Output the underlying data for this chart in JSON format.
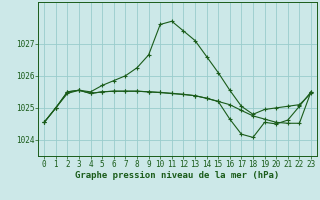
{
  "title": "Graphe pression niveau de la mer (hPa)",
  "background_color": "#cce8e8",
  "grid_color": "#99cccc",
  "line_color": "#1a5c1a",
  "marker_color": "#1a5c1a",
  "ylim": [
    1023.5,
    1028.3
  ],
  "yticks": [
    1024,
    1025,
    1026,
    1027
  ],
  "xlim": [
    -0.5,
    23.5
  ],
  "xticks": [
    0,
    1,
    2,
    3,
    4,
    5,
    6,
    7,
    8,
    9,
    10,
    11,
    12,
    13,
    14,
    15,
    16,
    17,
    18,
    19,
    20,
    21,
    22,
    23
  ],
  "series1": [
    1024.55,
    1025.0,
    1025.45,
    1025.55,
    1025.5,
    1025.7,
    1025.85,
    1026.0,
    1026.25,
    1026.65,
    1027.6,
    1027.7,
    1027.4,
    1027.1,
    1026.6,
    1026.1,
    1025.55,
    1025.05,
    1024.8,
    1024.95,
    1025.0,
    1025.05,
    1025.1,
    1025.45
  ],
  "series2": [
    1024.55,
    1025.0,
    1025.5,
    1025.55,
    1025.45,
    1025.5,
    1025.52,
    1025.52,
    1025.52,
    1025.5,
    1025.48,
    1025.45,
    1025.42,
    1025.38,
    1025.3,
    1025.2,
    1025.1,
    1024.92,
    1024.75,
    1024.65,
    1024.55,
    1024.52,
    1024.52,
    1025.5
  ],
  "series3": [
    1024.55,
    1025.0,
    1025.5,
    1025.55,
    1025.45,
    1025.5,
    1025.52,
    1025.52,
    1025.52,
    1025.5,
    1025.48,
    1025.45,
    1025.42,
    1025.38,
    1025.3,
    1025.2,
    1024.65,
    1024.18,
    1024.08,
    1024.55,
    1024.5,
    1024.62,
    1025.05,
    1025.5
  ],
  "tick_fontsize": 5.5,
  "title_fontsize": 6.5
}
